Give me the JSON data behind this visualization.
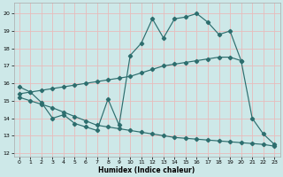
{
  "xlabel": "Humidex (Indice chaleur)",
  "xlim": [
    -0.5,
    23.5
  ],
  "ylim": [
    11.8,
    20.6
  ],
  "xticks": [
    0,
    1,
    2,
    3,
    4,
    5,
    6,
    7,
    8,
    9,
    10,
    11,
    12,
    13,
    14,
    15,
    16,
    17,
    18,
    19,
    20,
    21,
    22,
    23
  ],
  "yticks": [
    12,
    13,
    14,
    15,
    16,
    17,
    18,
    19,
    20
  ],
  "bg_color": "#cde8e8",
  "grid_color": "#e8bbbb",
  "line_color": "#2d6e6e",
  "line1_x": [
    0,
    1,
    2,
    3,
    4,
    5,
    6,
    7,
    8,
    9,
    10,
    11,
    12,
    13,
    14,
    15,
    16,
    17,
    18,
    19,
    20,
    21,
    22,
    23
  ],
  "line1_y": [
    15.8,
    15.5,
    14.9,
    14.0,
    14.2,
    13.7,
    13.5,
    13.3,
    15.1,
    13.6,
    17.6,
    18.3,
    19.7,
    18.6,
    19.7,
    19.8,
    20.0,
    19.5,
    18.8,
    19.0,
    17.3,
    14.0,
    13.1,
    12.5
  ],
  "line2_x": [
    0,
    1,
    2,
    3,
    4,
    5,
    6,
    7,
    8,
    9,
    10,
    11,
    12,
    13,
    14,
    15,
    16,
    17,
    18,
    19,
    20
  ],
  "line2_y": [
    15.4,
    15.5,
    15.6,
    15.7,
    15.8,
    15.9,
    16.0,
    16.1,
    16.2,
    16.3,
    16.4,
    16.6,
    16.8,
    17.0,
    17.1,
    17.2,
    17.3,
    17.4,
    17.5,
    17.5,
    17.3
  ],
  "line3_x": [
    0,
    1,
    2,
    3,
    4,
    5,
    6,
    7,
    8,
    9,
    10,
    11,
    12,
    13,
    14,
    15,
    16,
    17,
    18,
    19,
    20,
    21,
    22,
    23
  ],
  "line3_y": [
    15.2,
    15.0,
    14.8,
    14.6,
    14.35,
    14.1,
    13.85,
    13.6,
    13.5,
    13.4,
    13.3,
    13.2,
    13.1,
    13.0,
    12.9,
    12.85,
    12.8,
    12.75,
    12.7,
    12.65,
    12.6,
    12.55,
    12.5,
    12.4
  ]
}
